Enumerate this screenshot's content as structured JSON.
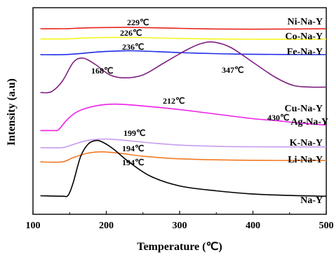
{
  "chart_data": {
    "type": "line",
    "xlabel": "Temperature (℃)",
    "ylabel": "Intensity (a.u)",
    "xlim": [
      100,
      500
    ],
    "x_ticks": [
      "100",
      "200",
      "300",
      "400",
      "500"
    ],
    "y_ticks_shown": false,
    "grid": false,
    "legend": "none; series names printed at right end of each curve",
    "series": [
      {
        "name": "Ni-Na-Y",
        "color": "#e8241f",
        "peaks": [
          {
            "x": 229,
            "label": "229℃"
          }
        ],
        "points": [
          [
            110,
            0.82
          ],
          [
            140,
            0.82
          ],
          [
            150,
            0.9
          ],
          [
            170,
            1.2
          ],
          [
            200,
            1.4
          ],
          [
            229,
            1.45
          ],
          [
            260,
            1.3
          ],
          [
            300,
            1.0
          ],
          [
            350,
            0.7
          ],
          [
            400,
            0.6
          ],
          [
            450,
            0.7
          ],
          [
            500,
            0.8
          ]
        ]
      },
      {
        "name": "Co-Na-Y",
        "color": "#f5f51e",
        "peaks": [
          {
            "x": 226,
            "label": "226℃"
          }
        ],
        "points": [
          [
            110,
            0.4
          ],
          [
            140,
            0.4
          ],
          [
            150,
            0.5
          ],
          [
            170,
            0.85
          ],
          [
            200,
            1.05
          ],
          [
            226,
            1.1
          ],
          [
            260,
            0.95
          ],
          [
            300,
            0.65
          ],
          [
            350,
            0.4
          ],
          [
            400,
            0.3
          ],
          [
            450,
            0.25
          ],
          [
            500,
            0.3
          ]
        ]
      },
      {
        "name": "Fe-Na-Y",
        "color": "#1f2ee8",
        "peaks": [
          {
            "x": 236,
            "label": "236℃"
          }
        ],
        "points": [
          [
            110,
            0.25
          ],
          [
            140,
            0.25
          ],
          [
            160,
            0.6
          ],
          [
            190,
            1.4
          ],
          [
            220,
            1.8
          ],
          [
            236,
            1.85
          ],
          [
            270,
            1.5
          ],
          [
            320,
            0.9
          ],
          [
            380,
            0.5
          ],
          [
            440,
            0.35
          ],
          [
            500,
            0.3
          ]
        ]
      },
      {
        "name": "Cu-Na-Y",
        "color": "#7f1f80",
        "peaks": [
          {
            "x": 168,
            "label": "168℃"
          },
          {
            "x": 347,
            "label": "347℃"
          }
        ],
        "points": [
          [
            110,
            0.3
          ],
          [
            125,
            0.5
          ],
          [
            140,
            3.0
          ],
          [
            155,
            7.5
          ],
          [
            168,
            8.5
          ],
          [
            185,
            7.0
          ],
          [
            205,
            4.5
          ],
          [
            225,
            3.8
          ],
          [
            250,
            4.5
          ],
          [
            280,
            7.5
          ],
          [
            310,
            10.5
          ],
          [
            330,
            12.0
          ],
          [
            347,
            12.3
          ],
          [
            370,
            11.0
          ],
          [
            400,
            7.5
          ],
          [
            430,
            4.0
          ],
          [
            455,
            2.0
          ],
          [
            480,
            1.6
          ],
          [
            500,
            1.6
          ]
        ]
      },
      {
        "name": "Ag-Na-Y",
        "color": "#ec1fe9",
        "peaks": [
          {
            "x": 212,
            "label": "212℃"
          },
          {
            "x": 430,
            "label": "430℃"
          }
        ],
        "points": [
          [
            110,
            0.4
          ],
          [
            128,
            0.4
          ],
          [
            135,
            0.6
          ],
          [
            145,
            2.5
          ],
          [
            160,
            4.5
          ],
          [
            185,
            5.8
          ],
          [
            212,
            6.2
          ],
          [
            250,
            5.8
          ],
          [
            300,
            5.0
          ],
          [
            350,
            4.0
          ],
          [
            400,
            3.0
          ],
          [
            430,
            2.6
          ],
          [
            460,
            2.1
          ],
          [
            500,
            1.6
          ]
        ]
      },
      {
        "name": "K-Na-Y",
        "color": "#c79cee",
        "peaks": [
          {
            "x": 199,
            "label": "199℃"
          }
        ],
        "points": [
          [
            110,
            0.5
          ],
          [
            140,
            0.5
          ],
          [
            155,
            1.5
          ],
          [
            175,
            2.8
          ],
          [
            199,
            3.2
          ],
          [
            225,
            2.8
          ],
          [
            260,
            2.0
          ],
          [
            300,
            1.3
          ],
          [
            350,
            0.9
          ],
          [
            400,
            0.75
          ],
          [
            450,
            0.7
          ],
          [
            500,
            0.7
          ]
        ]
      },
      {
        "name": "Li-Na-Y",
        "color": "#f07a23",
        "peaks": [
          {
            "x": 194,
            "label": "194℃"
          }
        ],
        "points": [
          [
            110,
            0.4
          ],
          [
            140,
            0.4
          ],
          [
            155,
            1.8
          ],
          [
            175,
            3.2
          ],
          [
            194,
            3.6
          ],
          [
            220,
            3.1
          ],
          [
            250,
            2.2
          ],
          [
            290,
            1.5
          ],
          [
            340,
            1.1
          ],
          [
            400,
            0.9
          ],
          [
            450,
            0.85
          ],
          [
            500,
            0.85
          ]
        ]
      },
      {
        "name": "Na-Y",
        "color": "#000000",
        "peaks": [
          {
            "x": 194,
            "label": "194℃"
          }
        ],
        "points": [
          [
            110,
            3.0
          ],
          [
            140,
            2.8
          ],
          [
            148,
            3.2
          ],
          [
            155,
            8.5
          ],
          [
            165,
            19.0
          ],
          [
            175,
            24.0
          ],
          [
            185,
            25.5
          ],
          [
            194,
            25.0
          ],
          [
            210,
            22.0
          ],
          [
            230,
            17.0
          ],
          [
            260,
            11.0
          ],
          [
            300,
            7.0
          ],
          [
            350,
            5.0
          ],
          [
            400,
            3.7
          ],
          [
            450,
            3.1
          ],
          [
            500,
            2.8
          ]
        ]
      }
    ]
  }
}
